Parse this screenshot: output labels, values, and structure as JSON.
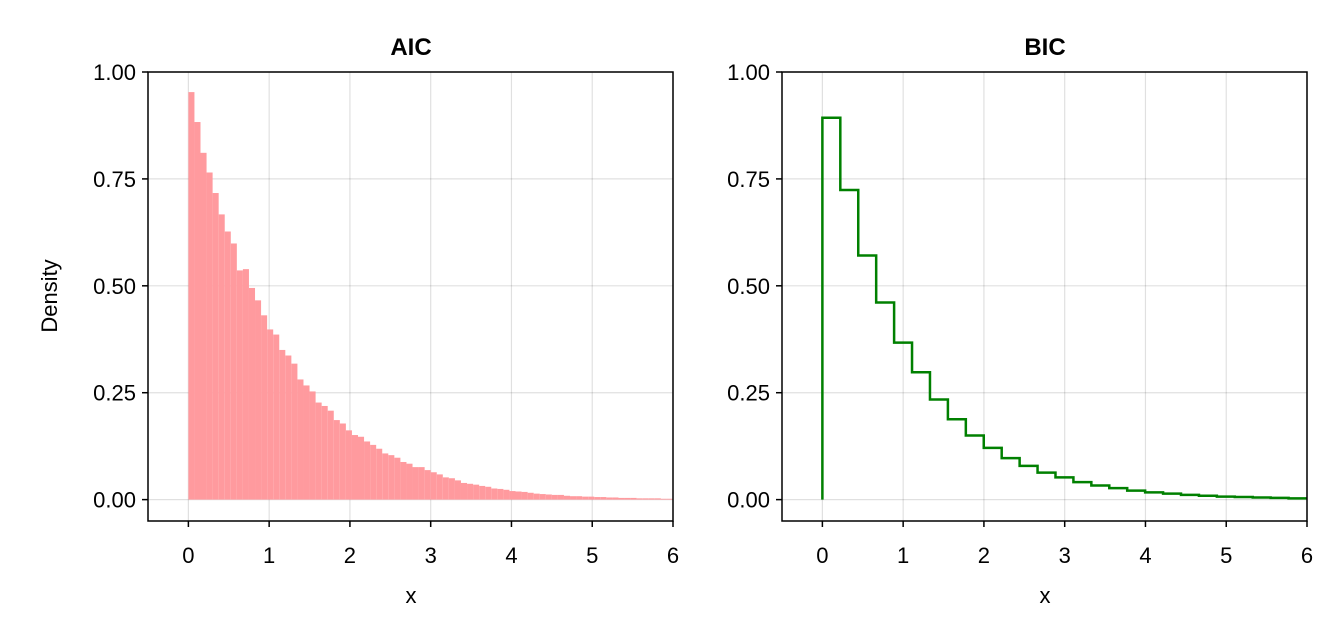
{
  "chart_data": [
    {
      "type": "bar",
      "style": "filled-histogram",
      "title": "AIC",
      "xlabel": "x",
      "ylabel": "Density",
      "xlim": [
        -0.5,
        6
      ],
      "ylim": [
        -0.05,
        1.0
      ],
      "xticks": [
        "0",
        "1",
        "2",
        "3",
        "4",
        "5",
        "6"
      ],
      "yticks": [
        "0.00",
        "0.25",
        "0.50",
        "0.75",
        "1.00"
      ],
      "grid": true,
      "color": "#ff9a9e",
      "bin_width": 0.075,
      "bin_start": 0,
      "values": [
        0.953,
        0.883,
        0.811,
        0.765,
        0.717,
        0.667,
        0.627,
        0.599,
        0.536,
        0.539,
        0.495,
        0.466,
        0.431,
        0.398,
        0.386,
        0.35,
        0.337,
        0.318,
        0.281,
        0.267,
        0.253,
        0.227,
        0.219,
        0.208,
        0.186,
        0.178,
        0.162,
        0.151,
        0.147,
        0.136,
        0.128,
        0.119,
        0.108,
        0.104,
        0.098,
        0.088,
        0.084,
        0.076,
        0.076,
        0.069,
        0.064,
        0.059,
        0.052,
        0.05,
        0.045,
        0.039,
        0.037,
        0.035,
        0.032,
        0.03,
        0.026,
        0.025,
        0.023,
        0.02,
        0.019,
        0.018,
        0.016,
        0.014,
        0.013,
        0.012,
        0.011,
        0.011,
        0.009,
        0.008,
        0.008,
        0.007,
        0.007,
        0.006,
        0.006,
        0.005,
        0.005,
        0.004,
        0.004,
        0.004,
        0.003,
        0.003,
        0.003,
        0.003,
        0.002,
        0.002
      ]
    },
    {
      "type": "line",
      "style": "step-histogram",
      "title": "BIC",
      "xlabel": "x",
      "ylabel": "",
      "xlim": [
        -0.5,
        6
      ],
      "ylim": [
        -0.05,
        1.0
      ],
      "xticks": [
        "0",
        "1",
        "2",
        "3",
        "4",
        "5",
        "6"
      ],
      "yticks": [
        "0.00",
        "0.25",
        "0.50",
        "0.75",
        "1.00"
      ],
      "grid": true,
      "color": "#008000",
      "bin_width": 0.222,
      "bin_start": 0,
      "values": [
        0.893,
        0.724,
        0.571,
        0.461,
        0.367,
        0.298,
        0.234,
        0.188,
        0.15,
        0.121,
        0.097,
        0.079,
        0.063,
        0.052,
        0.041,
        0.033,
        0.027,
        0.021,
        0.017,
        0.014,
        0.011,
        0.009,
        0.007,
        0.006,
        0.005,
        0.004,
        0.003,
        0.003
      ]
    }
  ]
}
